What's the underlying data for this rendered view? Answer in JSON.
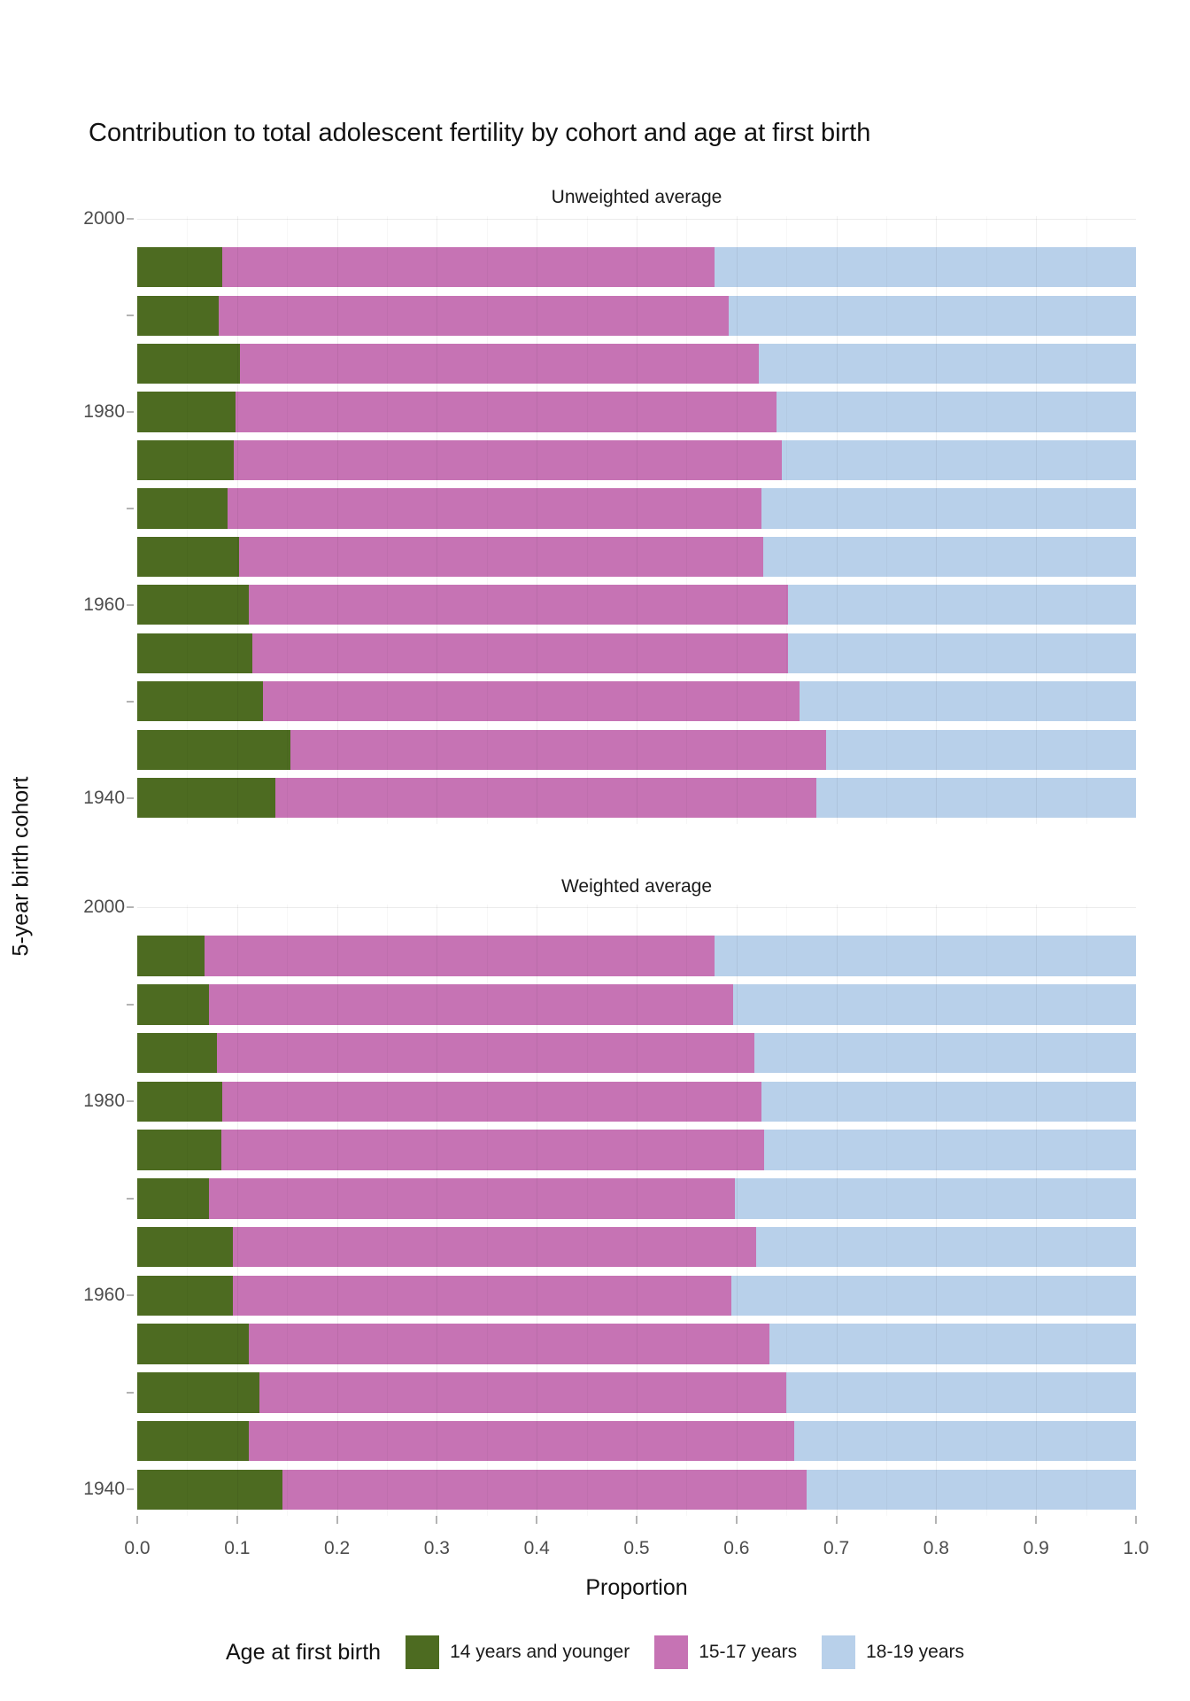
{
  "chart_data": {
    "type": "bar",
    "orientation": "horizontal",
    "stacked": true,
    "title": "Contribution to total adolescent fertility by cohort and age at first birth",
    "xlabel": "Proportion",
    "ylabel": "5-year birth cohort",
    "legend_title": "Age at first birth",
    "legend_position": "bottom",
    "grid": "on",
    "xlim": [
      0,
      1
    ],
    "ylim": [
      1937.3,
      2000.3
    ],
    "xticks": [
      {
        "label": "0.0",
        "value": 0.0
      },
      {
        "label": "0.1",
        "value": 0.1
      },
      {
        "label": "0.2",
        "value": 0.2
      },
      {
        "label": "0.3",
        "value": 0.3
      },
      {
        "label": "0.4",
        "value": 0.4
      },
      {
        "label": "0.5",
        "value": 0.5
      },
      {
        "label": "0.6",
        "value": 0.6
      },
      {
        "label": "0.7",
        "value": 0.7
      },
      {
        "label": "0.8",
        "value": 0.8
      },
      {
        "label": "0.9",
        "value": 0.9
      },
      {
        "label": "1.0",
        "value": 1.0
      }
    ],
    "yaxis_ticks": [
      {
        "year": 2000,
        "label": "2000"
      },
      {
        "year": 1990,
        "label": ""
      },
      {
        "year": 1980,
        "label": "1980"
      },
      {
        "year": 1970,
        "label": ""
      },
      {
        "year": 1960,
        "label": "1960"
      },
      {
        "year": 1950,
        "label": ""
      },
      {
        "year": 1940,
        "label": "1940"
      }
    ],
    "ygrid_years": [
      2000,
      1990,
      1980,
      1970,
      1960,
      1950,
      1940
    ],
    "series": [
      {
        "id": "14-years-and-younger",
        "name": "14 years and younger",
        "color": "#4d6b21"
      },
      {
        "id": "15-17-years",
        "name": "15-17 years",
        "color": "#c673b4"
      },
      {
        "id": "18-19-years",
        "name": "18-19 years",
        "color": "#b8d0ea"
      }
    ],
    "panels": [
      {
        "title": "Unweighted average",
        "bars": [
          {
            "cohort": 1995,
            "values": [
              0.085,
              0.493,
              0.422
            ]
          },
          {
            "cohort": 1990,
            "values": [
              0.082,
              0.51,
              0.408
            ]
          },
          {
            "cohort": 1985,
            "values": [
              0.103,
              0.519,
              0.378
            ]
          },
          {
            "cohort": 1980,
            "values": [
              0.098,
              0.542,
              0.36
            ]
          },
          {
            "cohort": 1975,
            "values": [
              0.097,
              0.548,
              0.355
            ]
          },
          {
            "cohort": 1970,
            "values": [
              0.09,
              0.535,
              0.375
            ]
          },
          {
            "cohort": 1965,
            "values": [
              0.102,
              0.525,
              0.373
            ]
          },
          {
            "cohort": 1960,
            "values": [
              0.112,
              0.54,
              0.348
            ]
          },
          {
            "cohort": 1955,
            "values": [
              0.115,
              0.537,
              0.348
            ]
          },
          {
            "cohort": 1950,
            "values": [
              0.126,
              0.537,
              0.337
            ]
          },
          {
            "cohort": 1945,
            "values": [
              0.153,
              0.537,
              0.31
            ]
          },
          {
            "cohort": 1940,
            "values": [
              0.138,
              0.542,
              0.32
            ]
          }
        ]
      },
      {
        "title": "Weighted average",
        "bars": [
          {
            "cohort": 1995,
            "values": [
              0.067,
              0.511,
              0.422
            ]
          },
          {
            "cohort": 1990,
            "values": [
              0.072,
              0.525,
              0.403
            ]
          },
          {
            "cohort": 1985,
            "values": [
              0.08,
              0.538,
              0.382
            ]
          },
          {
            "cohort": 1980,
            "values": [
              0.085,
              0.54,
              0.375
            ]
          },
          {
            "cohort": 1975,
            "values": [
              0.084,
              0.544,
              0.372
            ]
          },
          {
            "cohort": 1970,
            "values": [
              0.072,
              0.526,
              0.402
            ]
          },
          {
            "cohort": 1965,
            "values": [
              0.096,
              0.524,
              0.38
            ]
          },
          {
            "cohort": 1960,
            "values": [
              0.096,
              0.499,
              0.405
            ]
          },
          {
            "cohort": 1955,
            "values": [
              0.112,
              0.521,
              0.367
            ]
          },
          {
            "cohort": 1950,
            "values": [
              0.122,
              0.528,
              0.35
            ]
          },
          {
            "cohort": 1945,
            "values": [
              0.112,
              0.546,
              0.342
            ]
          },
          {
            "cohort": 1940,
            "values": [
              0.145,
              0.525,
              0.33
            ]
          }
        ]
      }
    ]
  }
}
